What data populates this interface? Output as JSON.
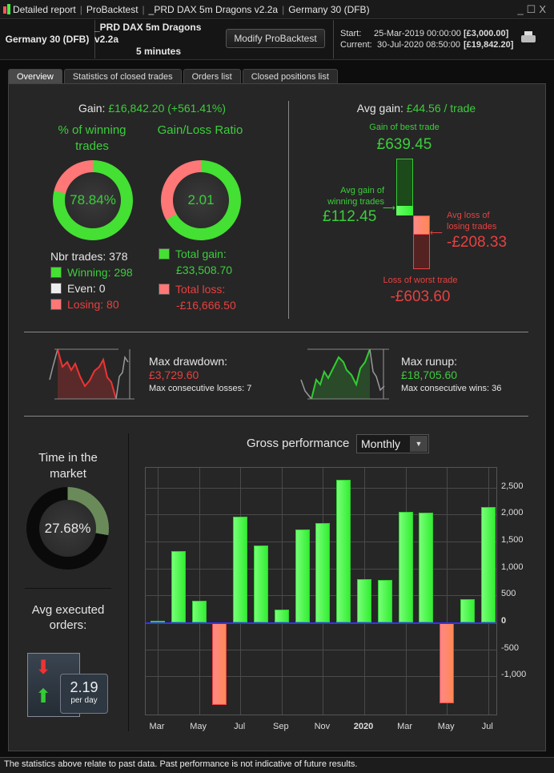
{
  "titlebar": {
    "items": [
      "Detailed report",
      "ProBacktest",
      "_PRD DAX 5m Dragons v2.2a",
      "Germany 30 (DFB)"
    ],
    "controls": [
      "_",
      "☐",
      "X"
    ]
  },
  "header": {
    "instrument": "Germany 30 (DFB)",
    "strategy": "_PRD DAX 5m Dragons v2.2a",
    "timeframe": "5 minutes",
    "modify_button": "Modify ProBacktest",
    "start_label": "Start:",
    "start_date": "25-Mar-2019 00:00:00",
    "start_capital": "[£3,000.00]",
    "current_label": "Current:",
    "current_date": "30-Jul-2020 08:50:00",
    "current_capital": "[£19,842.20]"
  },
  "tabs": [
    {
      "label": "Overview",
      "active": true
    },
    {
      "label": "Statistics of closed trades"
    },
    {
      "label": "Orders list"
    },
    {
      "label": "Closed positions list"
    }
  ],
  "overview": {
    "gain_label": "Gain:",
    "gain_value": "£16,842.20 (+561.41%)",
    "win_title": "% of winning trades",
    "win_pct_text": "78.84%",
    "win_pct": 78.84,
    "ratio_title": "Gain/Loss Ratio",
    "ratio_text": "2.01",
    "ratio_gain_share": 66.8,
    "nbr_trades": "Nbr trades: 378",
    "winning": "Winning: 298",
    "even": "Even: 0",
    "losing": "Losing: 80",
    "total_gain_label": "Total gain:",
    "total_gain": "£33,508.70",
    "total_loss_label": "Total loss:",
    "total_loss": "-£16,666.50",
    "avg_gain_label": "Avg gain:",
    "avg_gain": "£44.56 / trade",
    "best_label": "Gain of best trade",
    "best": "£639.45",
    "avg_win_label": "Avg gain of winning trades",
    "avg_win": "£112.45",
    "avg_loss_label": "Avg loss of losing trades",
    "avg_loss": "-£208.33",
    "worst_label": "Loss of worst trade",
    "worst": "-£603.60",
    "drawdown_label": "Max drawdown:",
    "drawdown": "£3,729.60",
    "consec_losses": "Max consecutive losses: 7",
    "runup_label": "Max runup:",
    "runup": "£18,705.60",
    "consec_wins": "Max consecutive wins: 36",
    "time_market_title": "Time in the market",
    "time_market_text": "27.68%",
    "time_market_pct": 27.68,
    "avg_orders_title": "Avg executed orders:",
    "avg_orders": "2.19",
    "avg_orders_unit": "per day",
    "perf_title": "Gross performance",
    "perf_period": "Monthly"
  },
  "chart_data": {
    "type": "bar",
    "title": "Gross performance",
    "xlabel": "",
    "ylabel": "",
    "categories": [
      "Mar 2019",
      "Apr 2019",
      "May 2019",
      "Jun 2019",
      "Jul 2019",
      "Aug 2019",
      "Sep 2019",
      "Oct 2019",
      "Nov 2019",
      "Dec 2019",
      "Jan 2020",
      "Feb 2020",
      "Mar 2020",
      "Apr 2020",
      "May 2020",
      "Jun 2020",
      "Jul 2020"
    ],
    "values": [
      30,
      1320,
      400,
      -1530,
      1960,
      1425,
      240,
      1720,
      1840,
      2645,
      800,
      790,
      2050,
      2035,
      -1500,
      430,
      2140
    ],
    "x_tick_labels": [
      "Mar",
      "May",
      "Jul",
      "Sep",
      "Nov",
      "2020",
      "Mar",
      "May",
      "Jul"
    ],
    "y_ticks": [
      2500,
      2000,
      1500,
      1000,
      500,
      0,
      -500,
      -1000
    ],
    "y_tick_labels": [
      "2,500",
      "2,000",
      "1,500",
      "1,000",
      "500",
      "0",
      "-500",
      "-1,000"
    ],
    "ylim": [
      -1736,
      2864
    ],
    "grid": true,
    "colors": {
      "positive": "#44ee33",
      "negative": "#ff7a66",
      "zero_line": "#3333ff"
    }
  },
  "footer": "The statistics above relate to past data. Past performance is not indicative of future results."
}
